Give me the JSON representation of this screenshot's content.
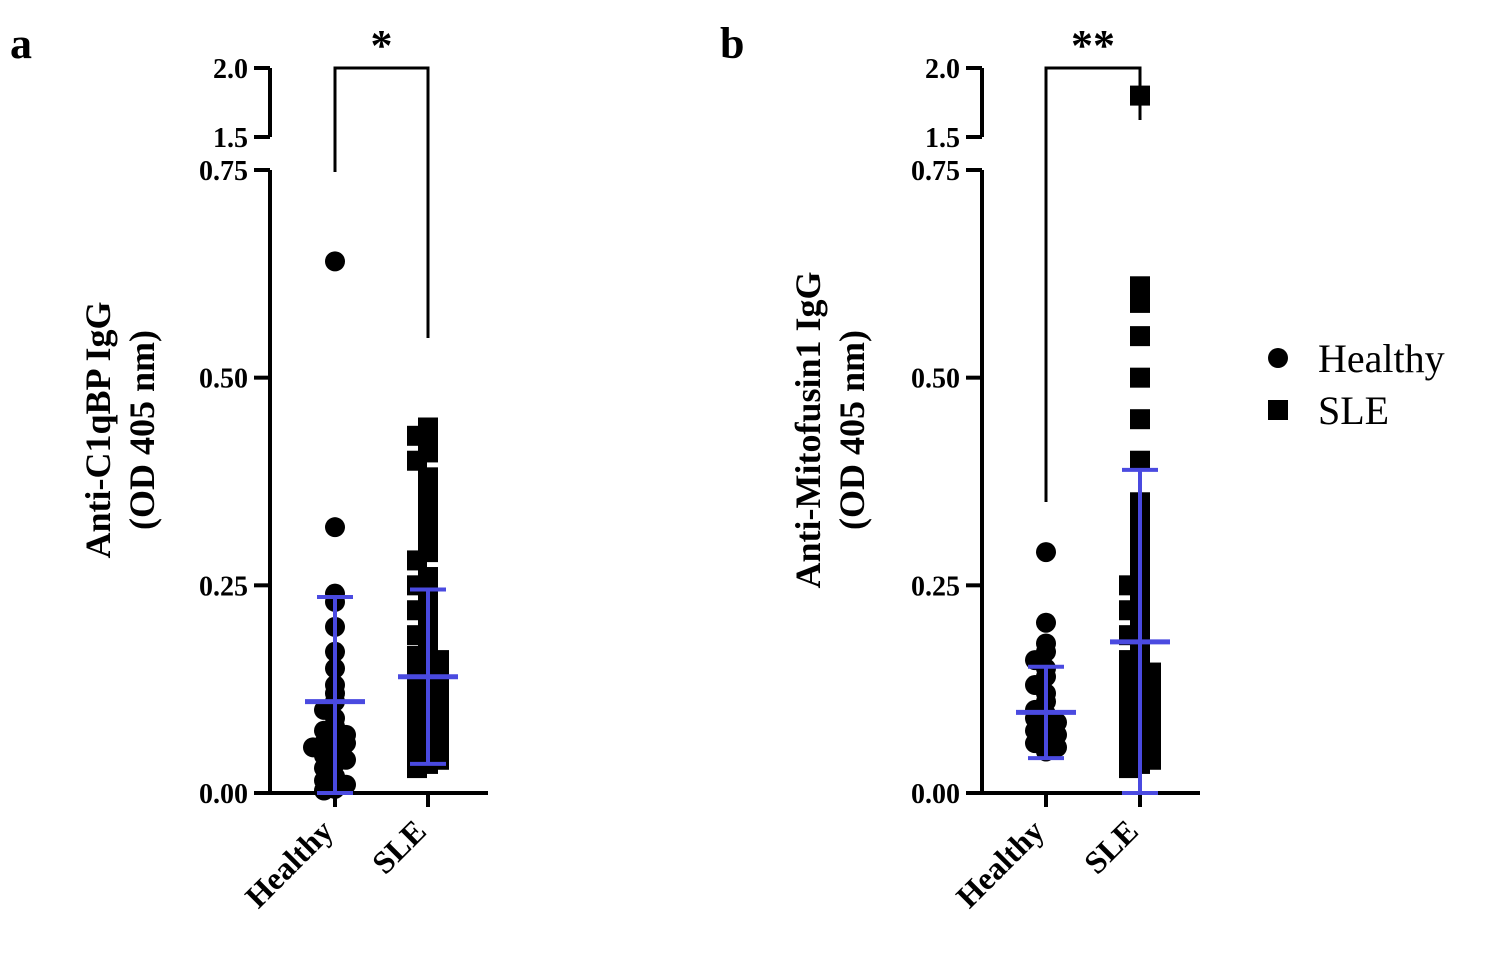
{
  "colors": {
    "points": "#000000",
    "error_bars": "#4a4ae0",
    "axes": "#000000"
  },
  "legend": {
    "placement": "right",
    "items": [
      {
        "label": "Healthy",
        "marker": "circle"
      },
      {
        "label": "SLE",
        "marker": "square"
      }
    ]
  },
  "chart_data": [
    {
      "type": "scatter",
      "panel_label": "a",
      "ylabel_line1": "Anti-C1qBP IgG",
      "ylabel_line2": "(OD 405 nm)",
      "categories": [
        "Healthy",
        "SLE"
      ],
      "y_axis_break": {
        "lower_range": [
          0,
          0.75
        ],
        "upper_range": [
          1.5,
          2.0
        ]
      },
      "yticks": [
        {
          "value": 0,
          "label": "0.00"
        },
        {
          "value": 0.25,
          "label": "0.25"
        },
        {
          "value": 0.5,
          "label": "0.50"
        },
        {
          "value": 0.75,
          "label": "0.75"
        },
        {
          "value": 1.5,
          "label": "1.5"
        },
        {
          "value": 2.0,
          "label": "2.0"
        }
      ],
      "significance": "*",
      "series": [
        {
          "name": "Healthy",
          "marker": "circle",
          "values": [
            0.64,
            0.32,
            0.24,
            0.23,
            0.2,
            0.17,
            0.15,
            0.13,
            0.12,
            0.11,
            0.1,
            0.09,
            0.08,
            0.075,
            0.07,
            0.065,
            0.06,
            0.06,
            0.055,
            0.05,
            0.045,
            0.04,
            0.035,
            0.03,
            0.02,
            0.015,
            0.01,
            0.005,
            0.003
          ],
          "mean": 0.11,
          "error_low": 0.0,
          "error_high": 0.236
        },
        {
          "name": "SLE",
          "marker": "square",
          "values": [
            0.44,
            0.43,
            0.42,
            0.41,
            0.4,
            0.38,
            0.36,
            0.34,
            0.32,
            0.3,
            0.29,
            0.28,
            0.26,
            0.25,
            0.24,
            0.23,
            0.22,
            0.21,
            0.2,
            0.19,
            0.18,
            0.17,
            0.165,
            0.16,
            0.155,
            0.15,
            0.145,
            0.14,
            0.135,
            0.13,
            0.125,
            0.12,
            0.115,
            0.11,
            0.105,
            0.1,
            0.095,
            0.09,
            0.085,
            0.08,
            0.075,
            0.07,
            0.065,
            0.06,
            0.055,
            0.05,
            0.045,
            0.04,
            0.035,
            0.03
          ],
          "mean": 0.14,
          "error_low": 0.035,
          "error_high": 0.245
        }
      ]
    },
    {
      "type": "scatter",
      "panel_label": "b",
      "ylabel_line1": "Anti-Mitofusin1 IgG",
      "ylabel_line2": "(OD 405 nm)",
      "categories": [
        "Healthy",
        "SLE"
      ],
      "y_axis_break": {
        "lower_range": [
          0,
          0.75
        ],
        "upper_range": [
          1.5,
          2.0
        ]
      },
      "yticks": [
        {
          "value": 0,
          "label": "0.00"
        },
        {
          "value": 0.25,
          "label": "0.25"
        },
        {
          "value": 0.5,
          "label": "0.50"
        },
        {
          "value": 0.75,
          "label": "0.75"
        },
        {
          "value": 1.5,
          "label": "1.5"
        },
        {
          "value": 2.0,
          "label": "2.0"
        }
      ],
      "significance": "**",
      "series": [
        {
          "name": "Healthy",
          "marker": "circle",
          "values": [
            0.29,
            0.205,
            0.18,
            0.17,
            0.16,
            0.15,
            0.14,
            0.13,
            0.12,
            0.11,
            0.1,
            0.095,
            0.09,
            0.085,
            0.08,
            0.075,
            0.07,
            0.065,
            0.06,
            0.055,
            0.05
          ],
          "mean": 0.097,
          "error_low": 0.042,
          "error_high": 0.152
        },
        {
          "name": "SLE",
          "marker": "square",
          "values": [
            1.8,
            0.61,
            0.6,
            0.59,
            0.55,
            0.5,
            0.45,
            0.4,
            0.35,
            0.33,
            0.31,
            0.29,
            0.27,
            0.26,
            0.25,
            0.24,
            0.23,
            0.22,
            0.21,
            0.2,
            0.19,
            0.18,
            0.17,
            0.16,
            0.155,
            0.15,
            0.145,
            0.14,
            0.135,
            0.13,
            0.125,
            0.12,
            0.115,
            0.11,
            0.105,
            0.1,
            0.095,
            0.09,
            0.085,
            0.08,
            0.075,
            0.07,
            0.065,
            0.06,
            0.055,
            0.05,
            0.045,
            0.04,
            0.035,
            0.03
          ],
          "mean": 0.182,
          "error_low": 0.0,
          "error_high": 0.389
        }
      ]
    }
  ]
}
